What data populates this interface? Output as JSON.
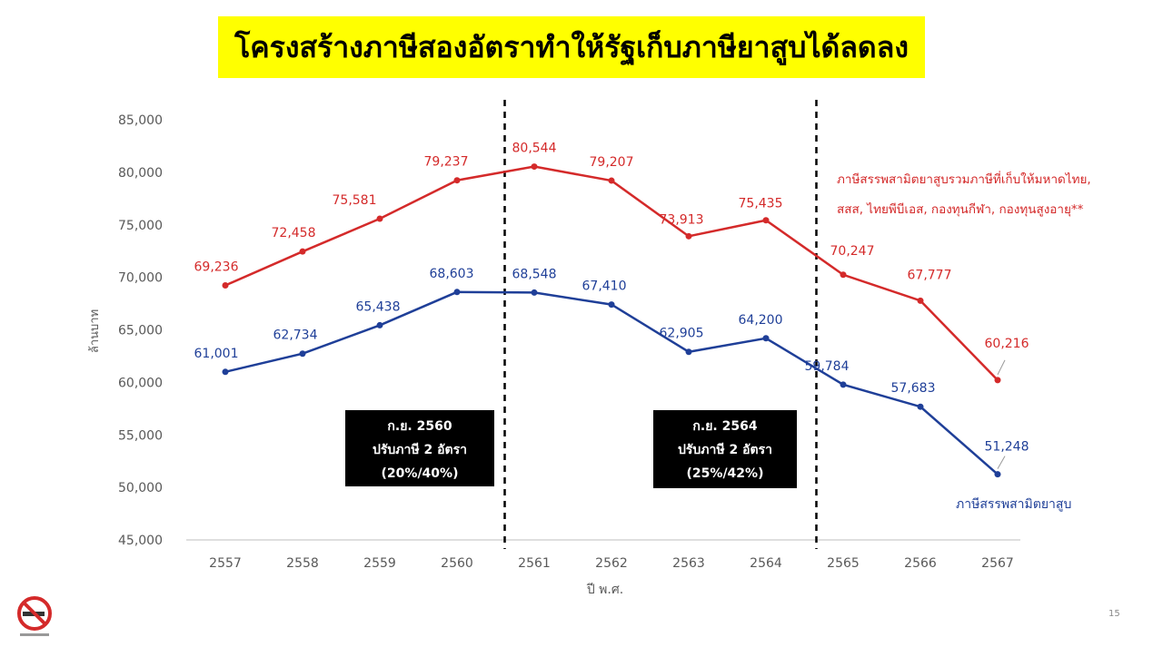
{
  "page": {
    "title": "โครงสร้างภาษีสองอัตราทำให้รัฐเก็บภาษียาสูบได้ลดลง",
    "page_number": "15"
  },
  "chart_data": {
    "type": "line",
    "title": "โครงสร้างภาษีสองอัตราทำให้รัฐเก็บภาษียาสูบได้ลดลง",
    "xlabel": "ปี พ.ศ.",
    "ylabel": "ล้านบาท",
    "ylim": [
      45000,
      85000
    ],
    "yticks": [
      45000,
      50000,
      55000,
      60000,
      65000,
      70000,
      75000,
      80000,
      85000
    ],
    "ytick_labels": [
      "45,000",
      "50,000",
      "55,000",
      "60,000",
      "65,000",
      "70,000",
      "75,000",
      "80,000",
      "85,000"
    ],
    "categories": [
      "2557",
      "2558",
      "2559",
      "2560",
      "2561",
      "2562",
      "2563",
      "2564",
      "2565",
      "2566",
      "2567"
    ],
    "grid": false,
    "series": [
      {
        "name": "ภาษีสรรพสามิตยาสูบรวมภาษีที่เก็บให้มหาดไทย, สสส, ไทยพีบีเอส, กองทุนกีฬา, กองทุนสูงอายุ**",
        "color": "#d42a2a",
        "values": [
          69236,
          72458,
          75581,
          79237,
          80544,
          79207,
          73913,
          75435,
          70247,
          67777,
          60216
        ],
        "labels": [
          "69,236",
          "72,458",
          "75,581",
          "79,237",
          "80,544",
          "79,207",
          "73,913",
          "75,435",
          "70,247",
          "67,777",
          "60,216"
        ]
      },
      {
        "name": "ภาษีสรรพสามิตยาสูบ",
        "color": "#1f3f98",
        "values": [
          61001,
          62734,
          65438,
          68603,
          68548,
          67410,
          62905,
          64200,
          59784,
          57683,
          51248
        ],
        "labels": [
          "61,001",
          "62,734",
          "65,438",
          "68,603",
          "68,548",
          "67,410",
          "62,905",
          "64,200",
          "59,784",
          "57,683",
          "51,248"
        ]
      }
    ],
    "legend_text": {
      "red_line1": "ภาษีสรรพสามิตยาสูบรวมภาษีที่เก็บให้มหาดไทย,",
      "red_line2": "สสส, ไทยพีบีเอส, กองทุนกีฬา, กองทุนสูงอายุ**",
      "blue": "ภาษีสรรพสามิตยาสูบ"
    },
    "annotations": [
      {
        "between": [
          "2560",
          "2561"
        ],
        "lines": [
          "ก.ย. 2560",
          "ปรับภาษี 2 อัตรา",
          "(20%/40%)"
        ]
      },
      {
        "between": [
          "2564",
          "2565"
        ],
        "lines": [
          "ก.ย. 2564",
          "ปรับภาษี 2 อัตรา",
          "(25%/42%)"
        ]
      }
    ],
    "colors": {
      "red": "#d42a2a",
      "blue": "#1f3f98",
      "axis_text": "#595959",
      "title_bg": "#ffff00"
    }
  }
}
